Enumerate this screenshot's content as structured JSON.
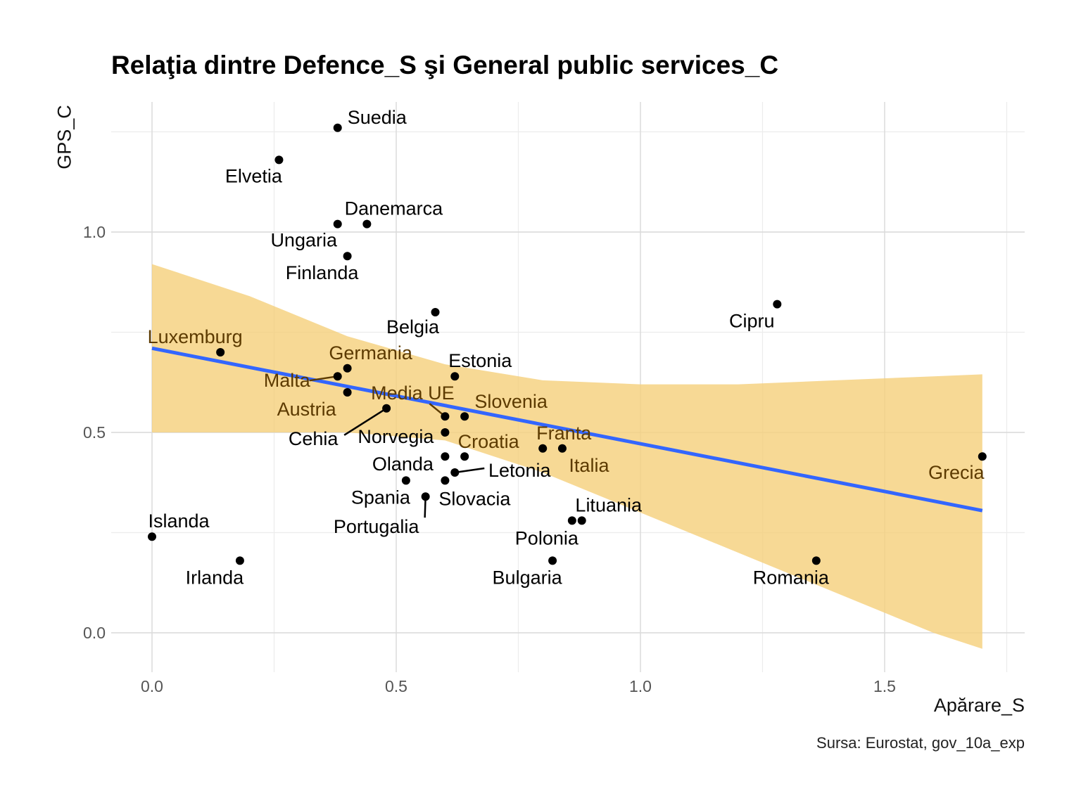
{
  "chart_data": {
    "type": "scatter",
    "title": "Relaţia dintre Defence_S şi General public services_C",
    "xlabel": "Apărare_S",
    "ylabel": "GPS_C",
    "caption": "Sursa: Eurostat, gov_10a_exp",
    "xlim": [
      -0.08,
      1.7
    ],
    "ylim": [
      -0.1,
      1.32
    ],
    "x_ticks": [
      {
        "value": 0.0,
        "label": "0.0"
      },
      {
        "value": 0.5,
        "label": "0.5"
      },
      {
        "value": 1.0,
        "label": "1.0"
      },
      {
        "value": 1.5,
        "label": "1.5"
      }
    ],
    "y_ticks": [
      {
        "value": 0.0,
        "label": "0.0"
      },
      {
        "value": 0.5,
        "label": "0.5"
      },
      {
        "value": 1.0,
        "label": "1.0"
      }
    ],
    "grid": true,
    "colors": {
      "point": "#000000",
      "label_inside_band": "#5c3a00",
      "label_outside_band": "#000000",
      "trend_line": "#3366ff",
      "confidence_band": "#f5cf7a",
      "grid": "#d9d9d9",
      "tick_label": "#555555"
    },
    "trend_line": {
      "x": [
        0.0,
        1.7
      ],
      "y": [
        0.71,
        0.305
      ]
    },
    "confidence_band": {
      "x": [
        0.0,
        0.2,
        0.4,
        0.6,
        0.8,
        1.0,
        1.2,
        1.4,
        1.6,
        1.7
      ],
      "lower": [
        0.5,
        0.5,
        0.5,
        0.48,
        0.4,
        0.3,
        0.2,
        0.1,
        0.0,
        -0.04
      ],
      "upper": [
        0.92,
        0.84,
        0.74,
        0.67,
        0.63,
        0.62,
        0.62,
        0.63,
        0.64,
        0.645
      ]
    },
    "points": [
      {
        "name": "Suedia",
        "x": 0.38,
        "y": 1.26
      },
      {
        "name": "Elvetia",
        "x": 0.26,
        "y": 1.18
      },
      {
        "name": "Danemarca",
        "x": 0.44,
        "y": 1.02
      },
      {
        "name": "Ungaria",
        "x": 0.38,
        "y": 1.02
      },
      {
        "name": "Finlanda",
        "x": 0.4,
        "y": 0.94
      },
      {
        "name": "Belgia",
        "x": 0.58,
        "y": 0.8
      },
      {
        "name": "Cipru",
        "x": 1.28,
        "y": 0.82
      },
      {
        "name": "Luxemburg",
        "x": 0.14,
        "y": 0.7
      },
      {
        "name": "Germania",
        "x": 0.4,
        "y": 0.66
      },
      {
        "name": "Malta",
        "x": 0.38,
        "y": 0.64
      },
      {
        "name": "Estonia",
        "x": 0.62,
        "y": 0.64
      },
      {
        "name": "Austria",
        "x": 0.4,
        "y": 0.6
      },
      {
        "name": "Media UE",
        "x": 0.6,
        "y": 0.54
      },
      {
        "name": "Slovenia",
        "x": 0.64,
        "y": 0.54
      },
      {
        "name": "Cehia",
        "x": 0.48,
        "y": 0.56
      },
      {
        "name": "Norvegia",
        "x": 0.6,
        "y": 0.5
      },
      {
        "name": "Croatia",
        "x": 0.64,
        "y": 0.44
      },
      {
        "name": "Franta",
        "x": 0.8,
        "y": 0.46
      },
      {
        "name": "Italia",
        "x": 0.84,
        "y": 0.46
      },
      {
        "name": "Olanda",
        "x": 0.6,
        "y": 0.44
      },
      {
        "name": "Letonia",
        "x": 0.62,
        "y": 0.4
      },
      {
        "name": "Spania",
        "x": 0.52,
        "y": 0.38
      },
      {
        "name": "Slovacia",
        "x": 0.6,
        "y": 0.38
      },
      {
        "name": "Portugalia",
        "x": 0.56,
        "y": 0.34
      },
      {
        "name": "Grecia",
        "x": 1.7,
        "y": 0.44
      },
      {
        "name": "Lituania",
        "x": 0.88,
        "y": 0.28
      },
      {
        "name": "Polonia",
        "x": 0.86,
        "y": 0.28
      },
      {
        "name": "Islanda",
        "x": 0.0,
        "y": 0.24
      },
      {
        "name": "Irlanda",
        "x": 0.18,
        "y": 0.18
      },
      {
        "name": "Bulgaria",
        "x": 0.82,
        "y": 0.18
      },
      {
        "name": "Romania",
        "x": 1.36,
        "y": 0.18
      }
    ]
  }
}
